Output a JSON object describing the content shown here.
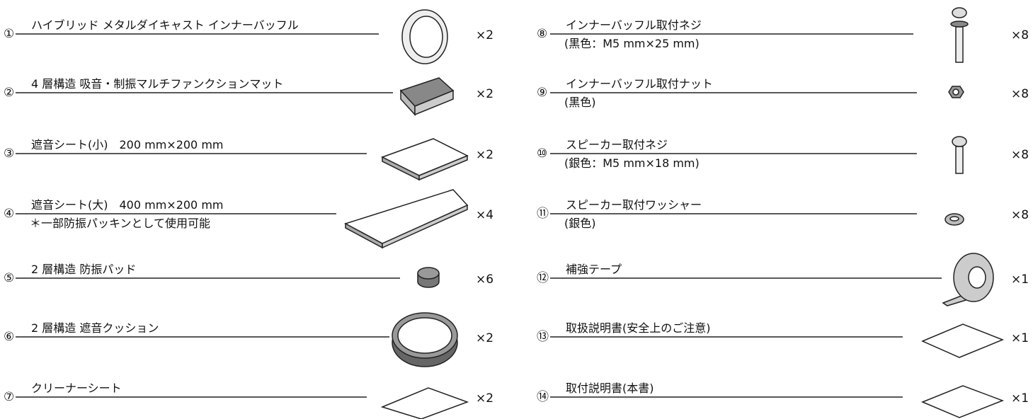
{
  "items": [
    {
      "number": "①",
      "name": "ハイブリッド メタルダイキャスト インナーバッフル",
      "quantity": "×2"
    },
    {
      "number": "②",
      "name": "4 層構造 吸音・制振マルチファンクションマット",
      "quantity": "×2"
    },
    {
      "number": "③",
      "name": "遮音シート(小)　200 mm×200 mm",
      "quantity": "×2"
    },
    {
      "number": "④",
      "name": "遮音シート(大)　400 mm×200 mm",
      "note": "＊一部防振パッキンとして使用可能",
      "quantity": "×4"
    },
    {
      "number": "⑤",
      "name": "2 層構造 防振パッド",
      "quantity": "×6"
    },
    {
      "number": "⑥",
      "name": "2 層構造 遮音クッション",
      "quantity": "×2"
    },
    {
      "number": "⑦",
      "name": "クリーナーシート",
      "quantity": "×2"
    },
    {
      "number": "⑧",
      "name": "インナーバッフル取付ネジ",
      "note": "(黒色：M5 mm×25 mm)",
      "quantity": "×8"
    },
    {
      "number": "⑨",
      "name": "インナーバッフル取付ナット",
      "note": "(黒色)",
      "quantity": "×8"
    },
    {
      "number": "⑩",
      "name": "スピーカー取付ネジ",
      "note": "(銀色：M5 mm×18 mm)",
      "quantity": "×8"
    },
    {
      "number": "⑪",
      "name": "スピーカー取付ワッシャー",
      "note": "(銀色)",
      "quantity": "×8"
    },
    {
      "number": "⑫",
      "name": "補強テープ",
      "quantity": "×1"
    },
    {
      "number": "⑬",
      "name": "取扱説明書(安全上のご注意)",
      "quantity": "×1"
    },
    {
      "number": "⑭",
      "name": "取付説明書(本書)",
      "quantity": "×1"
    }
  ]
}
